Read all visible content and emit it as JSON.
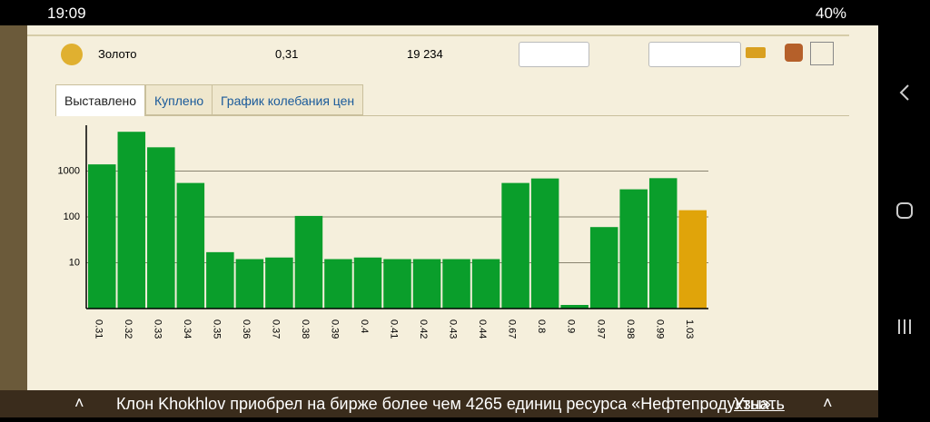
{
  "status_bar": {
    "time": "19:09",
    "battery": "40%"
  },
  "resource_row": {
    "name": "Золото",
    "price": "0,31",
    "amount": "19 234"
  },
  "tabs": [
    "Выставлено",
    "Куплено",
    "График колебания цен"
  ],
  "chart_data": {
    "type": "bar",
    "log_scale": true,
    "grid": true,
    "categories": [
      "0.31",
      "0.32",
      "0.33",
      "0.34",
      "0.35",
      "0.36",
      "0.37",
      "0.38",
      "0.39",
      "0.4",
      "0.41",
      "0.42",
      "0.43",
      "0.44",
      "0.67",
      "0.8",
      "0.9",
      "0.97",
      "0.98",
      "0.99",
      "1.03"
    ],
    "values": [
      1400,
      7200,
      3300,
      550,
      17,
      12,
      13,
      105,
      12,
      13,
      12,
      12,
      12,
      12,
      550,
      690,
      1.2,
      60,
      400,
      700,
      140
    ],
    "colors": [
      "#0a9e2b",
      "#0a9e2b",
      "#0a9e2b",
      "#0a9e2b",
      "#0a9e2b",
      "#0a9e2b",
      "#0a9e2b",
      "#0a9e2b",
      "#0a9e2b",
      "#0a9e2b",
      "#0a9e2b",
      "#0a9e2b",
      "#0a9e2b",
      "#0a9e2b",
      "#0a9e2b",
      "#0a9e2b",
      "#0a9e2b",
      "#0a9e2b",
      "#0a9e2b",
      "#0a9e2b",
      "#e0a40a"
    ],
    "ylim": [
      1,
      10000
    ],
    "yticks": [
      10,
      100,
      1000
    ]
  },
  "footer": {
    "message": "Клон Khokhlov приобрел на бирже более чем 4265 единиц ресурса «Нефтепродукты».",
    "link": "Узнать"
  }
}
